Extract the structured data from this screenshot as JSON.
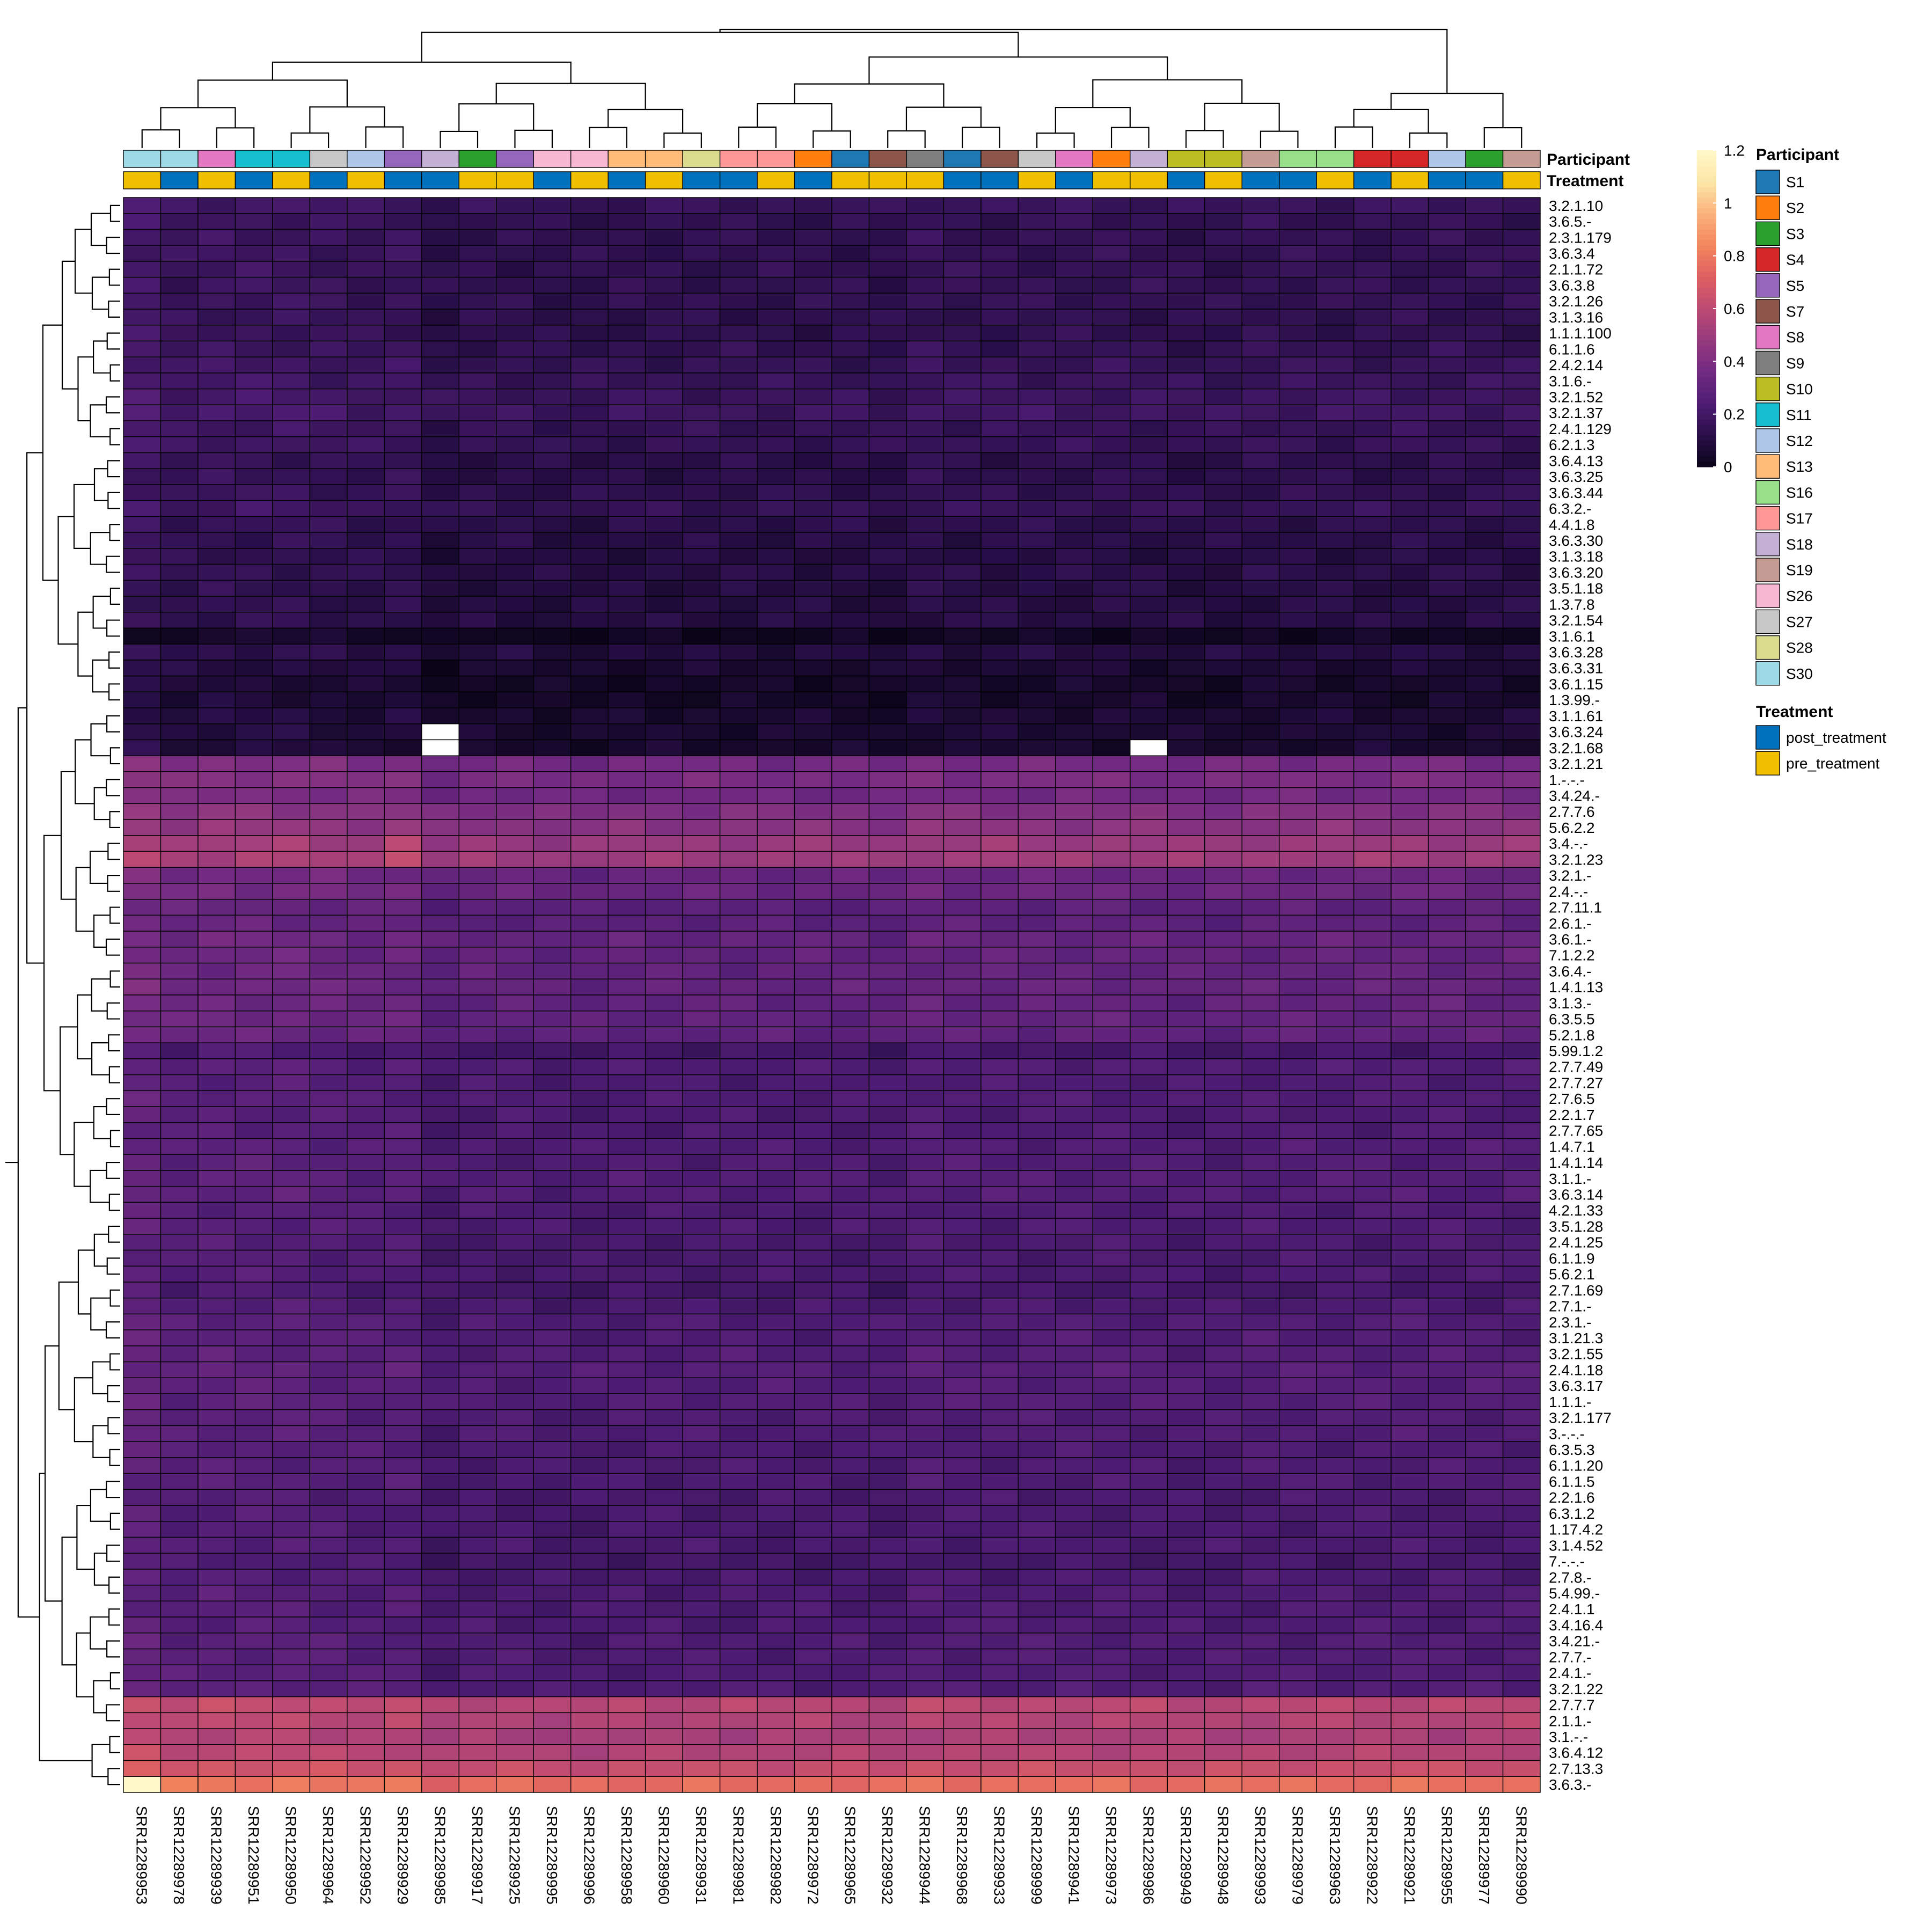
{
  "chart_data": {
    "type": "heatmap",
    "columns": [
      "SRR12289953",
      "SRR12289978",
      "SRR12289939",
      "SRR12289951",
      "SRR12289950",
      "SRR12289964",
      "SRR12289952",
      "SRR12289929",
      "SRR12289985",
      "SRR12289917",
      "SRR12289925",
      "SRR12289995",
      "SRR12289996",
      "SRR12289958",
      "SRR12289960",
      "SRR12289931",
      "SRR12289981",
      "SRR12289982",
      "SRR12289972",
      "SRR12289965",
      "SRR12289932",
      "SRR12289944",
      "SRR12289968",
      "SRR12289933",
      "SRR12289999",
      "SRR12289941",
      "SRR12289973",
      "SRR12289986",
      "SRR12289949",
      "SRR12289948",
      "SRR12289993",
      "SRR12289979",
      "SRR12289963",
      "SRR12289922",
      "SRR12289921",
      "SRR12289955",
      "SRR12289977",
      "SRR12289990"
    ],
    "rows": [
      "3.2.1.10",
      "3.6.5.-",
      "2.3.1.179",
      "3.6.3.4",
      "2.1.1.72",
      "3.6.3.8",
      "3.2.1.26",
      "3.1.3.16",
      "1.1.1.100",
      "6.1.1.6",
      "2.4.2.14",
      "3.1.6.-",
      "3.2.1.52",
      "3.2.1.37",
      "2.4.1.129",
      "6.2.1.3",
      "3.6.4.13",
      "3.6.3.25",
      "3.6.3.44",
      "6.3.2.-",
      "4.4.1.8",
      "3.6.3.30",
      "3.1.3.18",
      "3.6.3.20",
      "3.5.1.18",
      "1.3.7.8",
      "3.2.1.54",
      "3.1.6.1",
      "3.6.3.28",
      "3.6.3.31",
      "3.6.1.15",
      "1.3.99.-",
      "3.1.1.61",
      "3.6.3.24",
      "3.2.1.68",
      "3.2.1.21",
      "1.-.-.-",
      "3.4.24.-",
      "2.7.7.6",
      "5.6.2.2",
      "3.4.-.-",
      "3.2.1.23",
      "3.2.1.-",
      "2.4.-.-",
      "2.7.11.1",
      "2.6.1.-",
      "3.6.1.-",
      "7.1.2.2",
      "3.6.4.-",
      "1.4.1.13",
      "3.1.3.-",
      "6.3.5.5",
      "5.2.1.8",
      "5.99.1.2",
      "2.7.7.49",
      "2.7.7.27",
      "2.7.6.5",
      "2.2.1.7",
      "2.7.7.65",
      "1.4.7.1",
      "1.4.1.14",
      "3.1.1.-",
      "3.6.3.14",
      "4.2.1.33",
      "3.5.1.28",
      "2.4.1.25",
      "6.1.1.9",
      "5.6.2.1",
      "2.7.1.69",
      "2.7.1.-",
      "2.3.1.-",
      "3.1.21.3",
      "3.2.1.55",
      "2.4.1.18",
      "3.6.3.17",
      "1.1.1.-",
      "3.2.1.177",
      "3.-.-.-",
      "6.3.5.3",
      "6.1.1.20",
      "6.1.1.5",
      "2.2.1.6",
      "6.3.1.2",
      "1.17.4.2",
      "3.1.4.52",
      "7.-.-.-",
      "2.7.8.-",
      "5.4.99.-",
      "2.4.1.1",
      "3.4.16.4",
      "3.4.21.-",
      "2.7.7.-",
      "2.4.1.-",
      "3.2.1.22",
      "2.7.7.7",
      "2.1.1.-",
      "3.1.-.-",
      "3.6.4.12",
      "2.7.13.3",
      "3.6.3.-"
    ],
    "row_base": [
      0.18,
      0.16,
      0.16,
      0.16,
      0.16,
      0.16,
      0.16,
      0.15,
      0.15,
      0.16,
      0.17,
      0.18,
      0.19,
      0.2,
      0.17,
      0.17,
      0.14,
      0.14,
      0.15,
      0.17,
      0.14,
      0.13,
      0.12,
      0.13,
      0.12,
      0.12,
      0.12,
      0.04,
      0.11,
      0.08,
      0.06,
      0.06,
      0.08,
      0.08,
      0.07,
      0.38,
      0.4,
      0.37,
      0.42,
      0.45,
      0.5,
      0.52,
      0.34,
      0.35,
      0.3,
      0.3,
      0.33,
      0.32,
      0.32,
      0.33,
      0.32,
      0.32,
      0.31,
      0.22,
      0.26,
      0.25,
      0.26,
      0.25,
      0.25,
      0.26,
      0.26,
      0.27,
      0.27,
      0.25,
      0.25,
      0.24,
      0.24,
      0.24,
      0.22,
      0.24,
      0.26,
      0.26,
      0.27,
      0.28,
      0.27,
      0.27,
      0.26,
      0.26,
      0.25,
      0.25,
      0.25,
      0.24,
      0.24,
      0.24,
      0.24,
      0.22,
      0.24,
      0.25,
      0.25,
      0.25,
      0.26,
      0.26,
      0.26,
      0.26,
      0.6,
      0.58,
      0.55,
      0.58,
      0.65,
      0.78
    ],
    "column_offset": [
      0.05,
      0.01,
      0.02,
      0.02,
      0.02,
      0.01,
      0.0,
      0.01,
      -0.04,
      -0.02,
      -0.02,
      -0.03,
      -0.03,
      -0.02,
      -0.02,
      -0.02,
      -0.02,
      -0.02,
      -0.02,
      -0.02,
      -0.03,
      0.0,
      -0.01,
      -0.01,
      -0.01,
      -0.01,
      -0.01,
      -0.01,
      -0.02,
      -0.02,
      -0.01,
      -0.01,
      -0.01,
      -0.01,
      -0.01,
      -0.01,
      -0.01,
      -0.01
    ],
    "cell_overrides": [
      {
        "row": "3.6.3.24",
        "column": "SRR12289985",
        "value": null
      },
      {
        "row": "3.2.1.68",
        "column": "SRR12289985",
        "value": null
      },
      {
        "row": "3.2.1.68",
        "column": "SRR12289986",
        "value": null
      },
      {
        "row": "3.6.3.-",
        "column": "SRR12289953",
        "value": 1.2
      },
      {
        "row": "3.1.6.1",
        "column": "SRR12289953",
        "value": 0.02
      },
      {
        "row": "3.2.1.23",
        "column": "SRR12289929",
        "value": 0.62
      },
      {
        "row": "3.4.-.-",
        "column": "SRR12289929",
        "value": 0.6
      }
    ],
    "missing_value_color": "#ffffff",
    "color_scale": {
      "min": 0,
      "max": 1.2,
      "ticks": [
        0,
        0.2,
        0.4,
        0.6,
        0.8,
        1,
        1.2
      ],
      "tick_labels": [
        "0",
        "0.2",
        "0.4",
        "0.6",
        "0.8",
        "1",
        "1.2"
      ],
      "colormap": "magma",
      "stops": [
        "#0a0418",
        "#2a0f4a",
        "#4e1c74",
        "#722a82",
        "#963a7e",
        "#bd4a72",
        "#de6062",
        "#f3865c",
        "#fbb27c",
        "#fde7a8",
        "#fff8c8"
      ]
    },
    "row_dendrogram": true,
    "column_dendrogram": true,
    "annotations": [
      {
        "name": "Participant",
        "values": [
          "S30",
          "S30",
          "S8",
          "S11",
          "S11",
          "S27",
          "S12",
          "S5",
          "S18",
          "S3",
          "S5",
          "S26",
          "S26",
          "S13",
          "S13",
          "S28",
          "S17",
          "S17",
          "S2",
          "S1",
          "S7",
          "S9",
          "S1",
          "S7",
          "S27",
          "S8",
          "S2",
          "S18",
          "S10",
          "S10",
          "S19",
          "S16",
          "S16",
          "S4",
          "S4",
          "S12",
          "S3",
          "S19"
        ]
      },
      {
        "name": "Treatment",
        "values": [
          "pre_treatment",
          "post_treatment",
          "pre_treatment",
          "post_treatment",
          "pre_treatment",
          "post_treatment",
          "pre_treatment",
          "post_treatment",
          "post_treatment",
          "pre_treatment",
          "pre_treatment",
          "post_treatment",
          "pre_treatment",
          "post_treatment",
          "pre_treatment",
          "post_treatment",
          "post_treatment",
          "pre_treatment",
          "post_treatment",
          "pre_treatment",
          "pre_treatment",
          "pre_treatment",
          "post_treatment",
          "post_treatment",
          "pre_treatment",
          "post_treatment",
          "pre_treatment",
          "pre_treatment",
          "post_treatment",
          "pre_treatment",
          "post_treatment",
          "post_treatment",
          "pre_treatment",
          "post_treatment",
          "pre_treatment",
          "post_treatment",
          "post_treatment",
          "pre_treatment"
        ]
      }
    ],
    "legends": {
      "participant": {
        "title": "Participant",
        "entries": [
          {
            "label": "S1",
            "color": "#1f77b4"
          },
          {
            "label": "S2",
            "color": "#ff7f0e"
          },
          {
            "label": "S3",
            "color": "#2ca02c"
          },
          {
            "label": "S4",
            "color": "#d62728"
          },
          {
            "label": "S5",
            "color": "#9467bd"
          },
          {
            "label": "S7",
            "color": "#8c564b"
          },
          {
            "label": "S8",
            "color": "#e377c2"
          },
          {
            "label": "S9",
            "color": "#7f7f7f"
          },
          {
            "label": "S10",
            "color": "#bcbd22"
          },
          {
            "label": "S11",
            "color": "#17becf"
          },
          {
            "label": "S12",
            "color": "#aec7e8"
          },
          {
            "label": "S13",
            "color": "#ffbb78"
          },
          {
            "label": "S16",
            "color": "#98df8a"
          },
          {
            "label": "S17",
            "color": "#ff9896"
          },
          {
            "label": "S18",
            "color": "#c5b0d5"
          },
          {
            "label": "S19",
            "color": "#c49c94"
          },
          {
            "label": "S26",
            "color": "#f7b6d2"
          },
          {
            "label": "S27",
            "color": "#c7c7c7"
          },
          {
            "label": "S28",
            "color": "#dbdb8d"
          },
          {
            "label": "S30",
            "color": "#9edae5"
          }
        ]
      },
      "treatment": {
        "title": "Treatment",
        "entries": [
          {
            "label": "post_treatment",
            "color": "#0072bd"
          },
          {
            "label": "pre_treatment",
            "color": "#f0c000"
          }
        ]
      }
    },
    "grid": true
  }
}
